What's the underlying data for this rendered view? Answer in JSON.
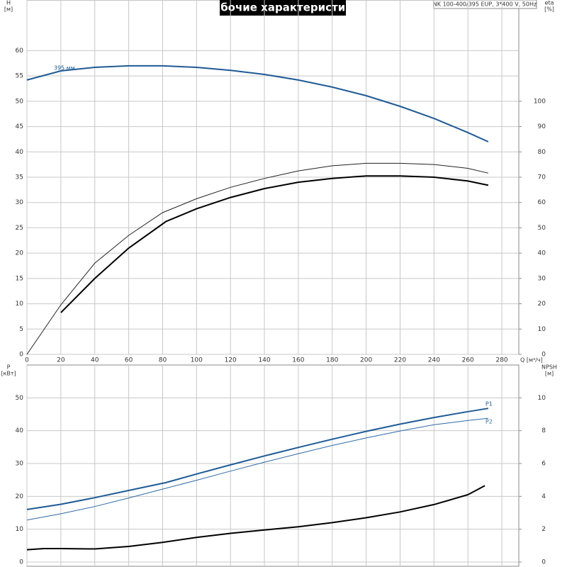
{
  "chart_data": [
    {
      "type": "line",
      "title": "Рабочие характеристики",
      "subtitle": "NK 100-400/395 EUP, 3*400 V, 50Hz",
      "y_label": [
        "H",
        "[м]"
      ],
      "y2_label": [
        "eta",
        "[%]"
      ],
      "x_label": "Q [м³/ч]",
      "xlim": [
        0,
        290
      ],
      "xticks": [
        0,
        20,
        40,
        60,
        80,
        100,
        120,
        140,
        160,
        180,
        200,
        220,
        240,
        260,
        280
      ],
      "ylim": [
        0,
        70
      ],
      "yticks": [
        0,
        5,
        10,
        15,
        20,
        25,
        30,
        35,
        40,
        45,
        50,
        55,
        60
      ],
      "y2lim": [
        0,
        140
      ],
      "y2ticks": [
        0,
        10,
        20,
        30,
        40,
        50,
        60,
        70,
        80,
        90,
        100
      ],
      "grid": true,
      "series": [
        {
          "label": "395 мм",
          "color": "#1f5a96",
          "line_width": 2,
          "axis": "y",
          "x": [
            0,
            20,
            40,
            60,
            80,
            100,
            120,
            140,
            160,
            180,
            200,
            220,
            240,
            260,
            272
          ],
          "values": [
            54.2,
            56,
            56.7,
            57,
            57,
            56.7,
            56.1,
            55.3,
            54.2,
            52.8,
            51.1,
            49,
            46.6,
            43.8,
            42
          ]
        },
        {
          "color": "#222222",
          "line_width": 1,
          "axis": "y2",
          "x": [
            0,
            20,
            40,
            60,
            80,
            100,
            120,
            140,
            160,
            180,
            200,
            220,
            240,
            260,
            272
          ],
          "values": [
            0,
            19.6,
            36,
            47,
            56,
            61.5,
            66,
            69.5,
            72.5,
            74.5,
            75.5,
            75.5,
            75,
            73.5,
            71.6
          ]
        },
        {
          "color": "#000000",
          "line_width": 2,
          "axis": "y2",
          "x": [
            20,
            40,
            60,
            82,
            100,
            120,
            140,
            160,
            180,
            200,
            220,
            240,
            260,
            272
          ],
          "values": [
            16.5,
            30,
            42,
            52.5,
            57.5,
            62,
            65.5,
            68,
            69.5,
            70.5,
            70.5,
            70,
            68.5,
            66.8
          ]
        }
      ]
    },
    {
      "type": "line",
      "y_label": [
        "P",
        "[кВт]"
      ],
      "y2_label": [
        "NPSH",
        "[м]"
      ],
      "xlim": [
        0,
        290
      ],
      "xticks": [
        0,
        20,
        40,
        60,
        80,
        100,
        120,
        140,
        160,
        180,
        200,
        220,
        240,
        260,
        280
      ],
      "ylim": [
        0,
        60
      ],
      "yticks": [
        0,
        10,
        20,
        30,
        40,
        50
      ],
      "y2lim": [
        0,
        12
      ],
      "y2ticks": [
        0,
        2,
        4,
        6,
        8,
        10
      ],
      "grid": true,
      "series": [
        {
          "label": "P1",
          "color": "#1f5a96",
          "line_width": 2,
          "axis": "y",
          "x": [
            0,
            20,
            40,
            60,
            82,
            100,
            120,
            140,
            160,
            180,
            200,
            220,
            240,
            260,
            272
          ],
          "values": [
            16,
            17.6,
            19.6,
            21.8,
            24.2,
            26.8,
            29.6,
            32.3,
            34.9,
            37.4,
            39.8,
            42,
            44,
            45.8,
            46.8
          ]
        },
        {
          "label": "P2",
          "color": "#2f6aa6",
          "line_width": 1,
          "axis": "y",
          "x": [
            0,
            20,
            40,
            60,
            80,
            100,
            120,
            140,
            160,
            180,
            200,
            220,
            240,
            260,
            272
          ],
          "values": [
            12.8,
            14.7,
            16.9,
            19.5,
            22.2,
            24.9,
            27.7,
            30.4,
            33,
            35.5,
            37.8,
            39.9,
            41.8,
            43.1,
            43.8
          ]
        },
        {
          "color": "#000000",
          "line_width": 2,
          "axis": "y2",
          "x": [
            0,
            10,
            20,
            40,
            60,
            80,
            100,
            120,
            140,
            160,
            180,
            200,
            220,
            240,
            260,
            270
          ],
          "values": [
            0.75,
            0.82,
            0.82,
            0.8,
            0.95,
            1.2,
            1.5,
            1.75,
            1.95,
            2.15,
            2.4,
            2.7,
            3.05,
            3.5,
            4.1,
            4.65
          ]
        }
      ]
    }
  ]
}
